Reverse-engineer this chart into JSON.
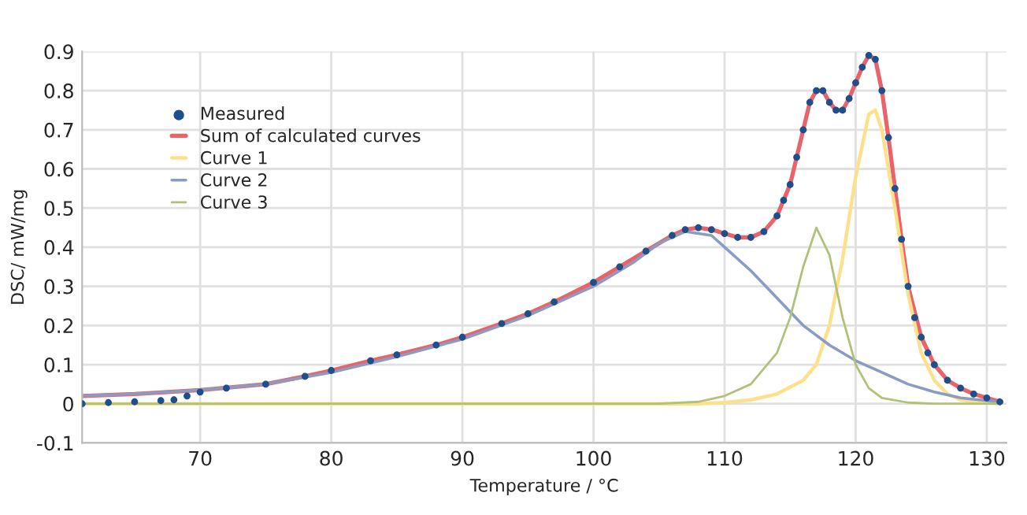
{
  "chart_data": {
    "type": "line",
    "xlabel": "Temperature / °C",
    "ylabel": "DSC/ mW/mg",
    "xlim": [
      61,
      131.5
    ],
    "ylim": [
      -0.1,
      0.9
    ],
    "xticks": [
      70,
      80,
      90,
      100,
      110,
      120,
      130
    ],
    "yticks": [
      -0.1,
      0,
      0.1,
      0.2,
      0.3,
      0.4,
      0.5,
      0.6,
      0.7,
      0.8,
      0.9
    ],
    "grid": true,
    "legend": "top left",
    "series": [
      {
        "name": "Measured",
        "type": "scatter",
        "marker": "circle",
        "color": "#1f4e8c",
        "x": [
          61,
          63,
          65,
          67,
          68,
          69,
          70,
          72,
          75,
          78,
          80,
          83,
          85,
          88,
          90,
          93,
          95,
          97,
          100,
          102,
          104,
          106,
          107,
          108,
          109,
          110,
          111,
          112,
          113,
          114,
          114.5,
          115,
          115.5,
          116,
          116.5,
          117,
          117.5,
          118,
          118.5,
          119,
          119.5,
          120,
          120.5,
          121,
          121.5,
          122,
          122.5,
          123,
          123.5,
          124,
          124.5,
          125,
          125.5,
          126,
          127,
          128,
          129,
          130,
          131
        ],
        "values": [
          0,
          0.003,
          0.005,
          0.008,
          0.01,
          0.02,
          0.03,
          0.04,
          0.05,
          0.07,
          0.085,
          0.11,
          0.125,
          0.15,
          0.17,
          0.205,
          0.23,
          0.26,
          0.31,
          0.35,
          0.39,
          0.43,
          0.445,
          0.45,
          0.445,
          0.435,
          0.425,
          0.425,
          0.44,
          0.48,
          0.52,
          0.56,
          0.63,
          0.7,
          0.77,
          0.8,
          0.8,
          0.77,
          0.75,
          0.75,
          0.78,
          0.82,
          0.86,
          0.89,
          0.88,
          0.8,
          0.68,
          0.55,
          0.42,
          0.3,
          0.22,
          0.17,
          0.13,
          0.1,
          0.06,
          0.04,
          0.025,
          0.015,
          0.005
        ]
      },
      {
        "name": "Sum of calculated curves",
        "color": "#e8646a",
        "x": [
          61,
          65,
          70,
          75,
          78,
          80,
          83,
          85,
          88,
          90,
          93,
          95,
          97,
          100,
          102,
          104,
          106,
          107,
          108,
          109,
          110,
          111,
          112,
          113,
          114,
          115,
          116,
          116.5,
          117,
          117.5,
          118,
          118.5,
          119,
          119.5,
          120,
          120.5,
          121,
          121.5,
          122,
          122.5,
          123,
          123.5,
          124,
          125,
          126,
          127,
          128,
          129,
          130,
          131
        ],
        "values": [
          0.02,
          0.025,
          0.035,
          0.05,
          0.07,
          0.085,
          0.11,
          0.125,
          0.15,
          0.17,
          0.205,
          0.23,
          0.26,
          0.31,
          0.35,
          0.39,
          0.43,
          0.445,
          0.45,
          0.445,
          0.435,
          0.425,
          0.425,
          0.44,
          0.48,
          0.56,
          0.7,
          0.77,
          0.8,
          0.8,
          0.77,
          0.75,
          0.75,
          0.78,
          0.82,
          0.86,
          0.89,
          0.88,
          0.8,
          0.68,
          0.55,
          0.42,
          0.3,
          0.17,
          0.1,
          0.06,
          0.04,
          0.025,
          0.015,
          0.005
        ]
      },
      {
        "name": "Curve 1",
        "color": "#fde18a",
        "x": [
          61,
          108,
          110,
          112,
          114,
          116,
          117,
          118,
          119,
          120,
          121,
          121.5,
          122,
          123,
          124,
          125,
          126,
          127,
          128,
          130,
          131
        ],
        "values": [
          0,
          0,
          0.003,
          0.01,
          0.025,
          0.06,
          0.1,
          0.2,
          0.37,
          0.58,
          0.74,
          0.75,
          0.7,
          0.5,
          0.28,
          0.13,
          0.06,
          0.025,
          0.01,
          0.002,
          0
        ]
      },
      {
        "name": "Curve 2",
        "color": "#8a9cc2",
        "x": [
          61,
          65,
          70,
          75,
          80,
          85,
          90,
          95,
          100,
          103,
          105,
          107,
          109,
          110,
          112,
          114,
          116,
          118,
          120,
          122,
          124,
          126,
          128,
          130,
          131
        ],
        "values": [
          0.02,
          0.025,
          0.035,
          0.05,
          0.08,
          0.12,
          0.165,
          0.225,
          0.3,
          0.36,
          0.41,
          0.44,
          0.43,
          0.4,
          0.34,
          0.27,
          0.2,
          0.15,
          0.11,
          0.08,
          0.05,
          0.03,
          0.015,
          0.008,
          0.005
        ]
      },
      {
        "name": "Curve 3",
        "color": "#b0c27a",
        "x": [
          61,
          105,
          108,
          110,
          112,
          114,
          115,
          116,
          117,
          118,
          119,
          120,
          121,
          122,
          124,
          126,
          131
        ],
        "values": [
          0,
          0,
          0.005,
          0.02,
          0.05,
          0.13,
          0.22,
          0.35,
          0.45,
          0.38,
          0.22,
          0.1,
          0.04,
          0.015,
          0.003,
          0,
          0
        ]
      }
    ]
  }
}
